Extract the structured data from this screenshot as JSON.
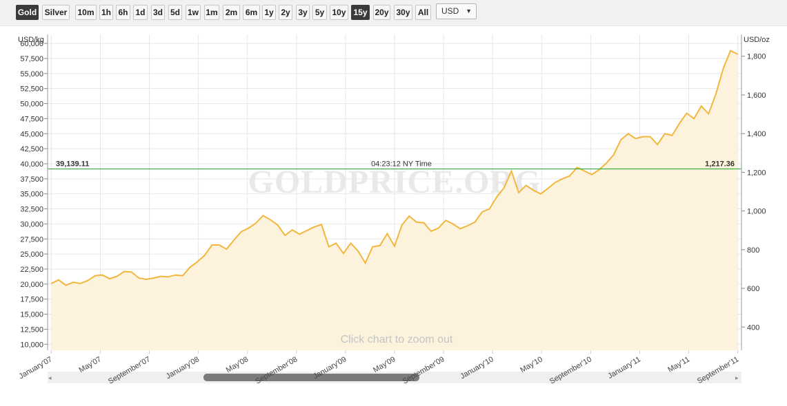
{
  "toolbar": {
    "metals": [
      {
        "label": "Gold",
        "active": true
      },
      {
        "label": "Silver",
        "active": false
      }
    ],
    "ranges": [
      {
        "label": "10m",
        "active": false
      },
      {
        "label": "1h",
        "active": false
      },
      {
        "label": "6h",
        "active": false
      },
      {
        "label": "1d",
        "active": false
      },
      {
        "label": "3d",
        "active": false
      },
      {
        "label": "5d",
        "active": false
      },
      {
        "label": "1w",
        "active": false
      },
      {
        "label": "1m",
        "active": false
      },
      {
        "label": "2m",
        "active": false
      },
      {
        "label": "6m",
        "active": false
      },
      {
        "label": "1y",
        "active": false
      },
      {
        "label": "2y",
        "active": false
      },
      {
        "label": "3y",
        "active": false
      },
      {
        "label": "5y",
        "active": false
      },
      {
        "label": "10y",
        "active": false
      },
      {
        "label": "15y",
        "active": true
      },
      {
        "label": "20y",
        "active": false
      },
      {
        "label": "30y",
        "active": false
      },
      {
        "label": "All",
        "active": false
      }
    ],
    "currency": "USD"
  },
  "chart_data": {
    "type": "area",
    "left_unit": "USD/kg",
    "right_unit": "USD/oz",
    "watermark": "GOLDPRICE.ORG",
    "hint": "Click chart to zoom out",
    "line_color": "#f2b63c",
    "fill_color": "#fdf2dc",
    "ref_color": "#2ca02c",
    "y_left": {
      "range": [
        9000,
        61500
      ],
      "ticks": [
        "10,000",
        "12,500",
        "15,000",
        "17,500",
        "20,000",
        "22,500",
        "25,000",
        "27,500",
        "30,000",
        "32,500",
        "35,000",
        "37,500",
        "40,000",
        "42,500",
        "45,000",
        "47,500",
        "50,000",
        "52,500",
        "55,000",
        "57,500",
        "60,000"
      ],
      "tick_values": [
        10000,
        12500,
        15000,
        17500,
        20000,
        22500,
        25000,
        27500,
        30000,
        32500,
        35000,
        37500,
        40000,
        42500,
        45000,
        47500,
        50000,
        52500,
        55000,
        57500,
        60000
      ]
    },
    "y_right": {
      "ticks": [
        "400",
        "600",
        "800",
        "1,000",
        "1,200",
        "1,400",
        "1,600",
        "1,800"
      ],
      "tick_values": [
        400,
        600,
        800,
        1000,
        1200,
        1400,
        1600,
        1800
      ]
    },
    "x_labels": [
      "January'07",
      "May'07",
      "September'07",
      "January'08",
      "May'08",
      "September'08",
      "January'09",
      "May'09",
      "September'09",
      "January'10",
      "May'10",
      "September'10",
      "January'11",
      "May'11",
      "September'11"
    ],
    "x_label_months": [
      0,
      4,
      8,
      12,
      16,
      20,
      24,
      28,
      32,
      36,
      40,
      44,
      48,
      52,
      56
    ],
    "x_range_months": [
      -0.3,
      56.3
    ],
    "values": [
      20100,
      20700,
      19800,
      20300,
      20100,
      20600,
      21400,
      21500,
      20900,
      21300,
      22100,
      22000,
      21000,
      20800,
      21000,
      21300,
      21200,
      21500,
      21400,
      22800,
      23700,
      24800,
      26500,
      26500,
      25800,
      27300,
      28700,
      29300,
      30100,
      31400,
      30700,
      29800,
      28100,
      29000,
      28300,
      28900,
      29500,
      29900,
      26200,
      26800,
      25100,
      26800,
      25500,
      23500,
      26200,
      26400,
      28400,
      26300,
      29800,
      31300,
      30300,
      30200,
      28800,
      29300,
      30600,
      30000,
      29200,
      29700,
      30300,
      32000,
      32500,
      34500,
      36000,
      38800,
      35200,
      36400,
      35600,
      35000,
      35900,
      36900,
      37500,
      38000,
      39400,
      38800,
      38200,
      39000,
      40100,
      41500,
      44000,
      45000,
      44200,
      44500,
      44500,
      43200,
      45000,
      44700,
      46700,
      48400,
      47500,
      49600,
      48300,
      51600,
      55800,
      58800,
      58200
    ],
    "reference": {
      "value": 39139.11,
      "left_label": "39,139.11",
      "center_label": "04:23:12 NY Time",
      "right_label": "1,217.36"
    },
    "navigator": {
      "left_arrow": "◂",
      "right_arrow": "▸"
    },
    "grid": true,
    "legend": "none"
  }
}
